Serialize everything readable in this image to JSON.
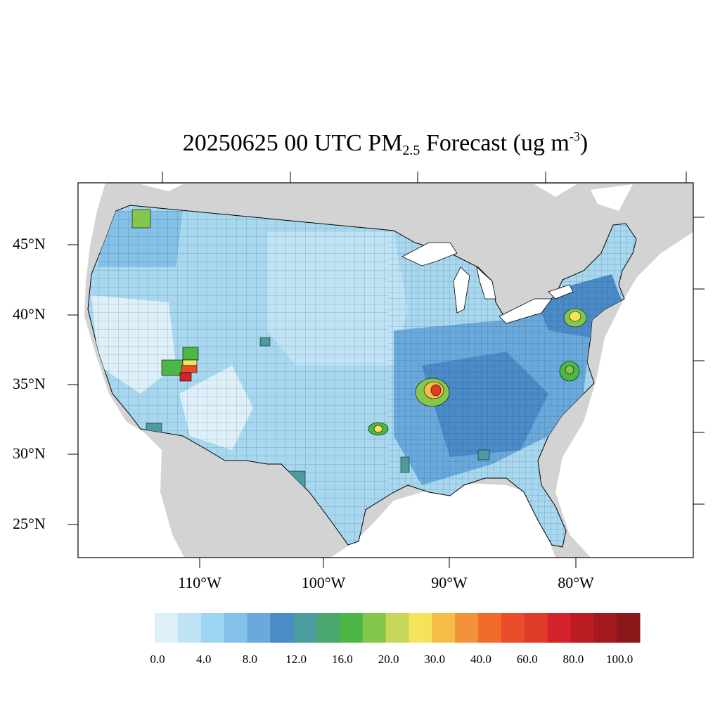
{
  "title": {
    "main": "20250625 00 UTC PM",
    "sub": "2.5",
    "mid": " Forecast (ug m",
    "sup": "-3",
    "end": ")"
  },
  "lat_labels": [
    "45°N",
    "40°N",
    "35°N",
    "30°N",
    "25°N"
  ],
  "lon_labels": [
    "110°W",
    "100°W",
    "90°W",
    "80°W"
  ],
  "colorbar": {
    "labels": [
      "0.0",
      "4.0",
      "8.0",
      "12.0",
      "16.0",
      "20.0",
      "30.0",
      "40.0",
      "60.0",
      "80.0",
      "100.0"
    ],
    "colors": [
      "#ddf0fa",
      "#bfe3f5",
      "#9dd6f2",
      "#84c1e8",
      "#6aa9dc",
      "#4a8bc8",
      "#4a9c9f",
      "#4aa86e",
      "#4cb747",
      "#85c64d",
      "#c6d65a",
      "#f6e35c",
      "#f6bc48",
      "#f49239",
      "#f16b2a",
      "#e94d2a",
      "#e03a28",
      "#d3222b",
      "#bb1b23",
      "#a3191e",
      "#8a171a"
    ]
  },
  "colors": {
    "land_other": "#d3d3d3",
    "water": "#ffffff",
    "us_base": "#a7d8f0",
    "border": "#000000"
  },
  "hotspots": [
    {
      "name": "central-arkansas",
      "level": "60.0"
    },
    {
      "name": "southern-utah",
      "level": "80.0"
    },
    {
      "name": "philadelphia-area",
      "level": "30.0"
    },
    {
      "name": "virginia-area",
      "level": "20.0"
    },
    {
      "name": "oklahoma",
      "level": "30.0"
    },
    {
      "name": "washington-nw",
      "level": "20.0"
    }
  ]
}
